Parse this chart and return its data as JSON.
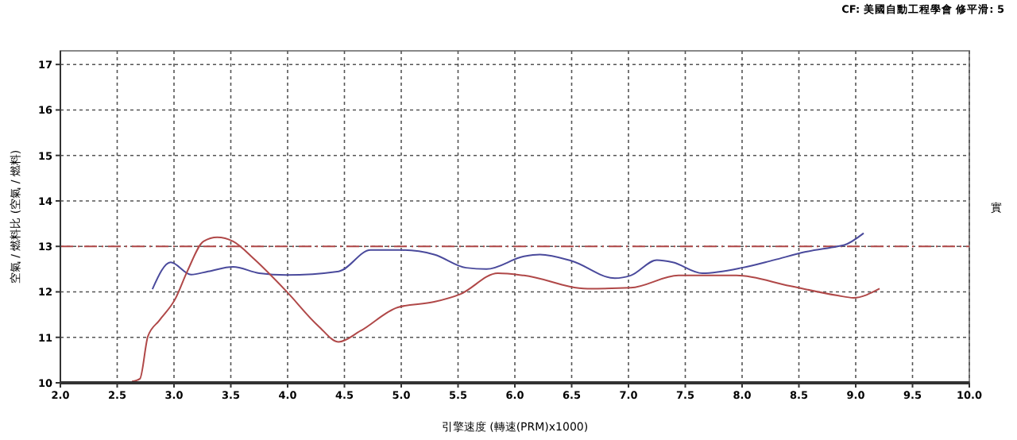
{
  "chart_data": {
    "type": "line",
    "annotations": [
      "CF: 美國自動工程學會 修平滑: 5"
    ],
    "xlabel": "引擎速度 (轉速(PRM)x1000)",
    "ylabel": "空氣 / 燃料比 (空氣 / 燃料)",
    "y2label": "實",
    "xlim": [
      2,
      10
    ],
    "xticks": [
      {
        "value": 2,
        "label": "2.0"
      },
      {
        "value": 2.5,
        "label": "2.5"
      },
      {
        "value": 3,
        "label": "3.0"
      },
      {
        "value": 3.5,
        "label": "3.5"
      },
      {
        "value": 4,
        "label": "4.0"
      },
      {
        "value": 4.5,
        "label": "4.5"
      },
      {
        "value": 5,
        "label": "5.0"
      },
      {
        "value": 5.5,
        "label": "5.5"
      },
      {
        "value": 6,
        "label": "6.0"
      },
      {
        "value": 6.5,
        "label": "6.5"
      },
      {
        "value": 7,
        "label": "7.0"
      },
      {
        "value": 7.5,
        "label": "7.5"
      },
      {
        "value": 8,
        "label": "8.0"
      },
      {
        "value": 8.5,
        "label": "8.5"
      },
      {
        "value": 9,
        "label": "9.0"
      },
      {
        "value": 9.5,
        "label": "9.5"
      },
      {
        "value": 10,
        "label": "10.0"
      }
    ],
    "ylim": [
      10,
      17.3
    ],
    "yticks": [
      10,
      11,
      12,
      13,
      14,
      15,
      16,
      17
    ],
    "grid": true,
    "line_style": "solid",
    "ref_lines": [
      {
        "axis": "y",
        "value": 13,
        "color": "#b04848",
        "line_style": "dashdot"
      }
    ],
    "series": [
      {
        "color": "#4a4a9c",
        "x": [
          2.81,
          2.97,
          3.15,
          3.3,
          3.52,
          3.75,
          3.99,
          4.45,
          4.73,
          5.0,
          5.29,
          5.57,
          5.75,
          6.08,
          6.22,
          6.5,
          6.88,
          7.02,
          7.25,
          7.39,
          7.65,
          8.0,
          8.28,
          8.56,
          8.84,
          8.9,
          9.07
        ],
        "values": [
          12.06,
          12.65,
          12.38,
          12.45,
          12.55,
          12.41,
          12.37,
          12.45,
          12.92,
          12.92,
          12.82,
          12.53,
          12.5,
          12.78,
          12.82,
          12.68,
          12.3,
          12.36,
          12.7,
          12.65,
          12.41,
          12.53,
          12.7,
          12.88,
          13.0,
          13.03,
          13.29
        ]
      },
      {
        "color": "#b04848",
        "x": [
          2.63,
          2.7,
          2.77,
          2.87,
          3.01,
          3.12,
          3.26,
          3.38,
          3.52,
          3.71,
          3.99,
          4.27,
          4.45,
          4.64,
          4.97,
          5.29,
          5.52,
          5.85,
          6.08,
          6.64,
          7.02,
          7.44,
          7.95,
          8.42,
          8.84,
          8.98,
          9.21
        ],
        "values": [
          10.03,
          10.09,
          11.02,
          11.37,
          11.84,
          12.47,
          13.11,
          13.2,
          13.11,
          12.71,
          12.01,
          11.25,
          10.9,
          11.14,
          11.66,
          11.78,
          11.95,
          12.41,
          12.36,
          12.07,
          12.09,
          12.36,
          12.36,
          12.13,
          11.92,
          11.87,
          12.07
        ]
      }
    ]
  }
}
